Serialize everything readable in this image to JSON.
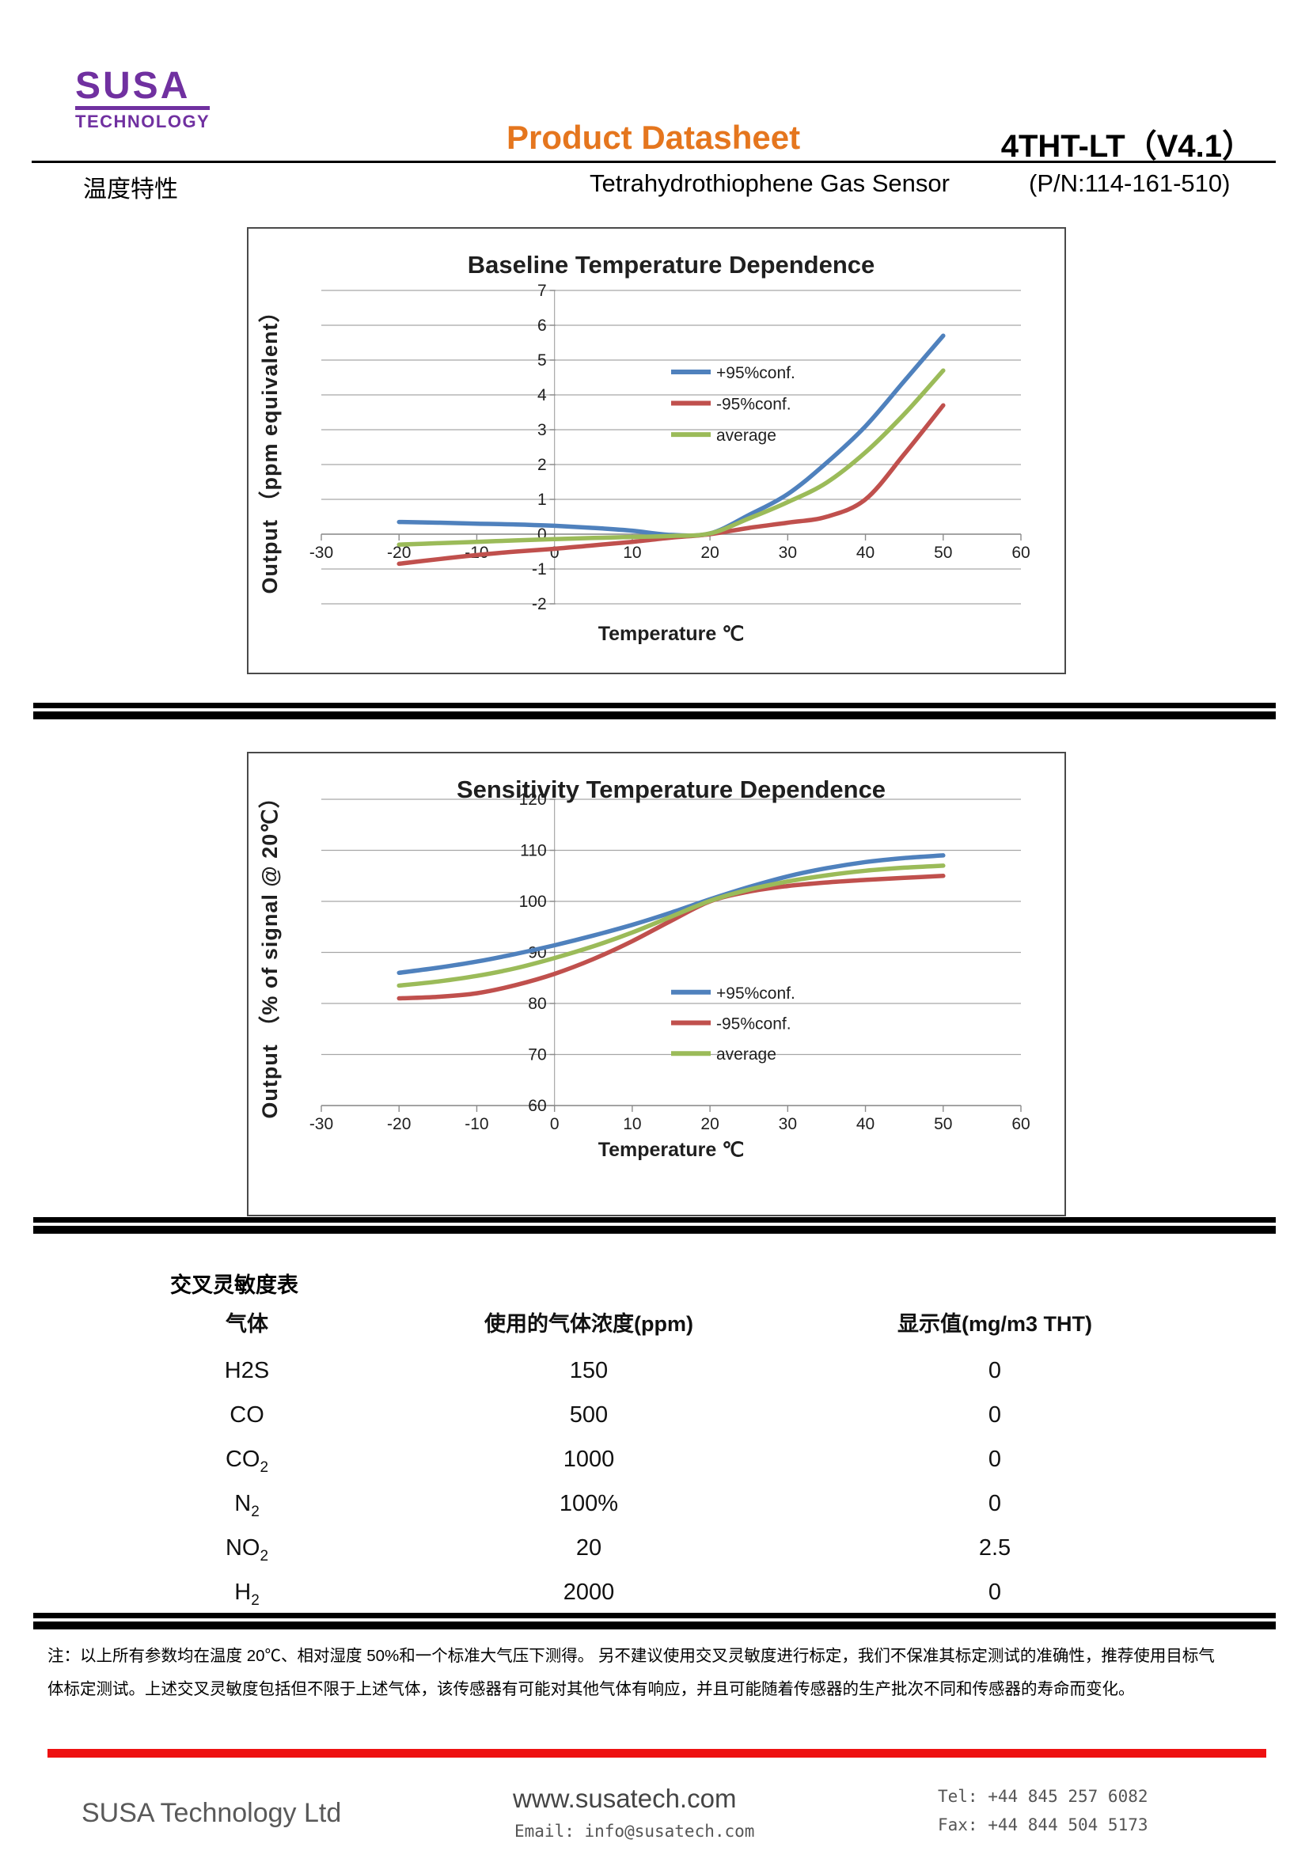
{
  "header": {
    "logo_line1": "SUSA",
    "logo_line2": "TECHNOLOGY",
    "doc_title": "Product Datasheet",
    "model": "4THT-LT（V4.1）",
    "section_label_cn": "温度特性",
    "product_name": "Tetrahydrothiophene Gas Sensor",
    "part_number": "(P/N:114-161-510)"
  },
  "colors": {
    "logo_purple": "#7030a0",
    "title_orange": "#e5761e",
    "footer_bar_red": "#ee1111",
    "series_blue": "#4f81bd",
    "series_red": "#c0504d",
    "series_green": "#9bbb59",
    "gridline_gray": "#a6a6a6"
  },
  "chart_data": [
    {
      "type": "line",
      "title": "Baseline Temperature Dependence",
      "xlabel": "Temperature ℃",
      "ylabel": "Output （ppm equivalent）",
      "xlim": [
        -30,
        60
      ],
      "ylim": [
        -2,
        7
      ],
      "xtick_step": 10,
      "yticks": [
        -2,
        -1,
        0,
        1,
        2,
        3,
        4,
        5,
        6,
        7
      ],
      "grid": "horizontal",
      "x_axis_at": "zero",
      "legend_position": "upper-middle",
      "x": [
        -20,
        -15,
        -10,
        -5,
        0,
        5,
        10,
        15,
        20,
        25,
        30,
        35,
        40,
        45,
        50
      ],
      "series": [
        {
          "name": "+95%conf.",
          "color": "#4f81bd",
          "values": [
            0.35,
            0.33,
            0.3,
            0.28,
            0.24,
            0.18,
            0.1,
            -0.02,
            0.02,
            0.55,
            1.15,
            2.05,
            3.1,
            4.4,
            5.7
          ]
        },
        {
          "name": "-95%conf.",
          "color": "#c0504d",
          "values": [
            -0.85,
            -0.72,
            -0.6,
            -0.5,
            -0.42,
            -0.32,
            -0.22,
            -0.1,
            0.0,
            0.18,
            0.33,
            0.5,
            1.0,
            2.3,
            3.7
          ]
        },
        {
          "name": "average",
          "color": "#9bbb59",
          "values": [
            -0.3,
            -0.26,
            -0.22,
            -0.18,
            -0.14,
            -0.11,
            -0.08,
            -0.05,
            0.02,
            0.45,
            0.92,
            1.48,
            2.35,
            3.45,
            4.7
          ]
        }
      ],
      "legend": {
        "entries": [
          "+95%conf.",
          "-95%conf.",
          "average"
        ],
        "fx": 0.5,
        "fy": 0.26,
        "step": 0.1
      }
    },
    {
      "type": "line",
      "title": "Sensitivity Temperature Dependence",
      "xlabel": "Temperature ℃",
      "ylabel": "Output （% of signal @ 20℃）",
      "xlim": [
        -30,
        60
      ],
      "ylim": [
        60,
        120
      ],
      "xtick_step": 10,
      "yticks": [
        60,
        70,
        80,
        90,
        100,
        110,
        120
      ],
      "grid": "horizontal",
      "x_axis_at": "bottom",
      "legend_position": "middle",
      "x": [
        -20,
        -15,
        -10,
        -5,
        0,
        5,
        10,
        15,
        20,
        25,
        30,
        35,
        40,
        45,
        50
      ],
      "series": [
        {
          "name": "+95%conf.",
          "color": "#4f81bd",
          "values": [
            86.0,
            87.0,
            88.2,
            89.7,
            91.4,
            93.3,
            95.4,
            97.8,
            100.4,
            102.8,
            104.9,
            106.5,
            107.7,
            108.5,
            109.0
          ]
        },
        {
          "name": "-95%conf.",
          "color": "#c0504d",
          "values": [
            81.0,
            81.3,
            82.0,
            83.6,
            85.8,
            88.7,
            92.2,
            96.2,
            100.0,
            101.9,
            103.0,
            103.7,
            104.2,
            104.6,
            105.0
          ]
        },
        {
          "name": "average",
          "color": "#9bbb59",
          "values": [
            83.5,
            84.3,
            85.4,
            86.9,
            88.9,
            91.2,
            93.9,
            97.0,
            100.1,
            102.3,
            103.9,
            105.1,
            106.0,
            106.6,
            107.0
          ]
        }
      ],
      "legend": {
        "entries": [
          "+95%conf.",
          "-95%conf.",
          "average"
        ],
        "fx": 0.5,
        "fy": 0.63,
        "step": 0.1
      }
    }
  ],
  "cross_sensitivity": {
    "heading": "交叉灵敏度表",
    "columns": [
      "气体",
      "使用的气体浓度(ppm)",
      "显示值(mg/m3 THT)"
    ],
    "rows": [
      {
        "gas_base": "H2S",
        "gas_sub": "",
        "concentration": "150",
        "reading": "0"
      },
      {
        "gas_base": "CO",
        "gas_sub": "",
        "concentration": "500",
        "reading": "0"
      },
      {
        "gas_base": "CO",
        "gas_sub": "2",
        "concentration": "1000",
        "reading": "0"
      },
      {
        "gas_base": "N",
        "gas_sub": "2",
        "concentration": "100%",
        "reading": "0"
      },
      {
        "gas_base": "NO",
        "gas_sub": "2",
        "concentration": "20",
        "reading": "2.5"
      },
      {
        "gas_base": "H",
        "gas_sub": "2",
        "concentration": "2000",
        "reading": "0"
      }
    ]
  },
  "note": {
    "line1": "注：以上所有参数均在温度 20℃、相对湿度 50%和一个标准大气压下测得。 另不建议使用交叉灵敏度进行标定，我们不保准其标定测试的准确性，推荐使用目标气",
    "line2": "体标定测试。上述交叉灵敏度包括但不限于上述气体，该传感器有可能对其他气体有响应，并且可能随着传感器的生产批次不同和传感器的寿命而变化。"
  },
  "footer": {
    "company": "SUSA Technology Ltd",
    "website": "www.susatech.com",
    "email": "Email: info@susatech.com",
    "tel": "Tel: +44 845 257 6082",
    "fax": "Fax: +44 844 504 5173"
  }
}
